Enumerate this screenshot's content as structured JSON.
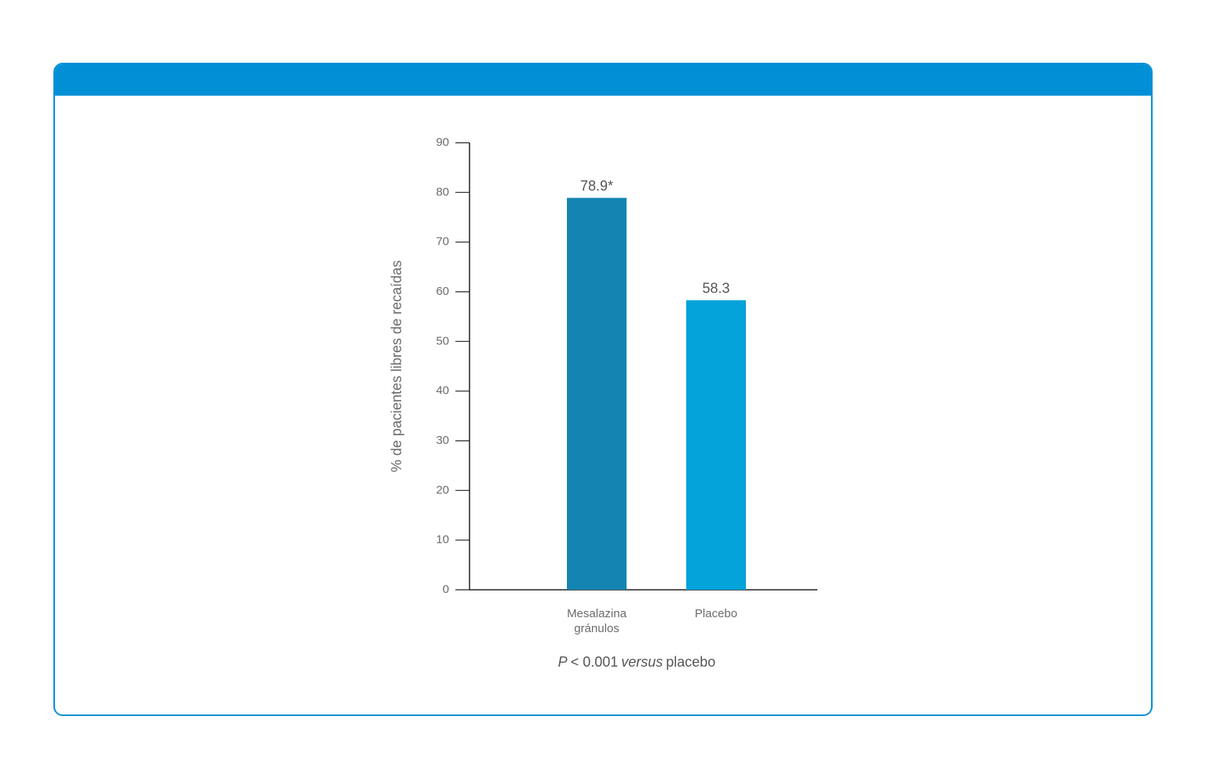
{
  "chart_data": {
    "type": "bar",
    "y_label": "% de pacientes libres de recaídas",
    "categories": [
      "Mesalazina gránulos",
      "Placebo"
    ],
    "values": [
      78.9,
      58.3
    ],
    "value_labels": [
      "78.9*",
      "58.3"
    ],
    "colors": [
      "#1485b3",
      "#04a3da"
    ],
    "ylim": [
      0,
      90
    ],
    "yticks": [
      0,
      10,
      20,
      30,
      40,
      50,
      60,
      70,
      80,
      90
    ],
    "footnote": [
      "P",
      "< 0.001",
      "versus",
      "placebo"
    ]
  }
}
